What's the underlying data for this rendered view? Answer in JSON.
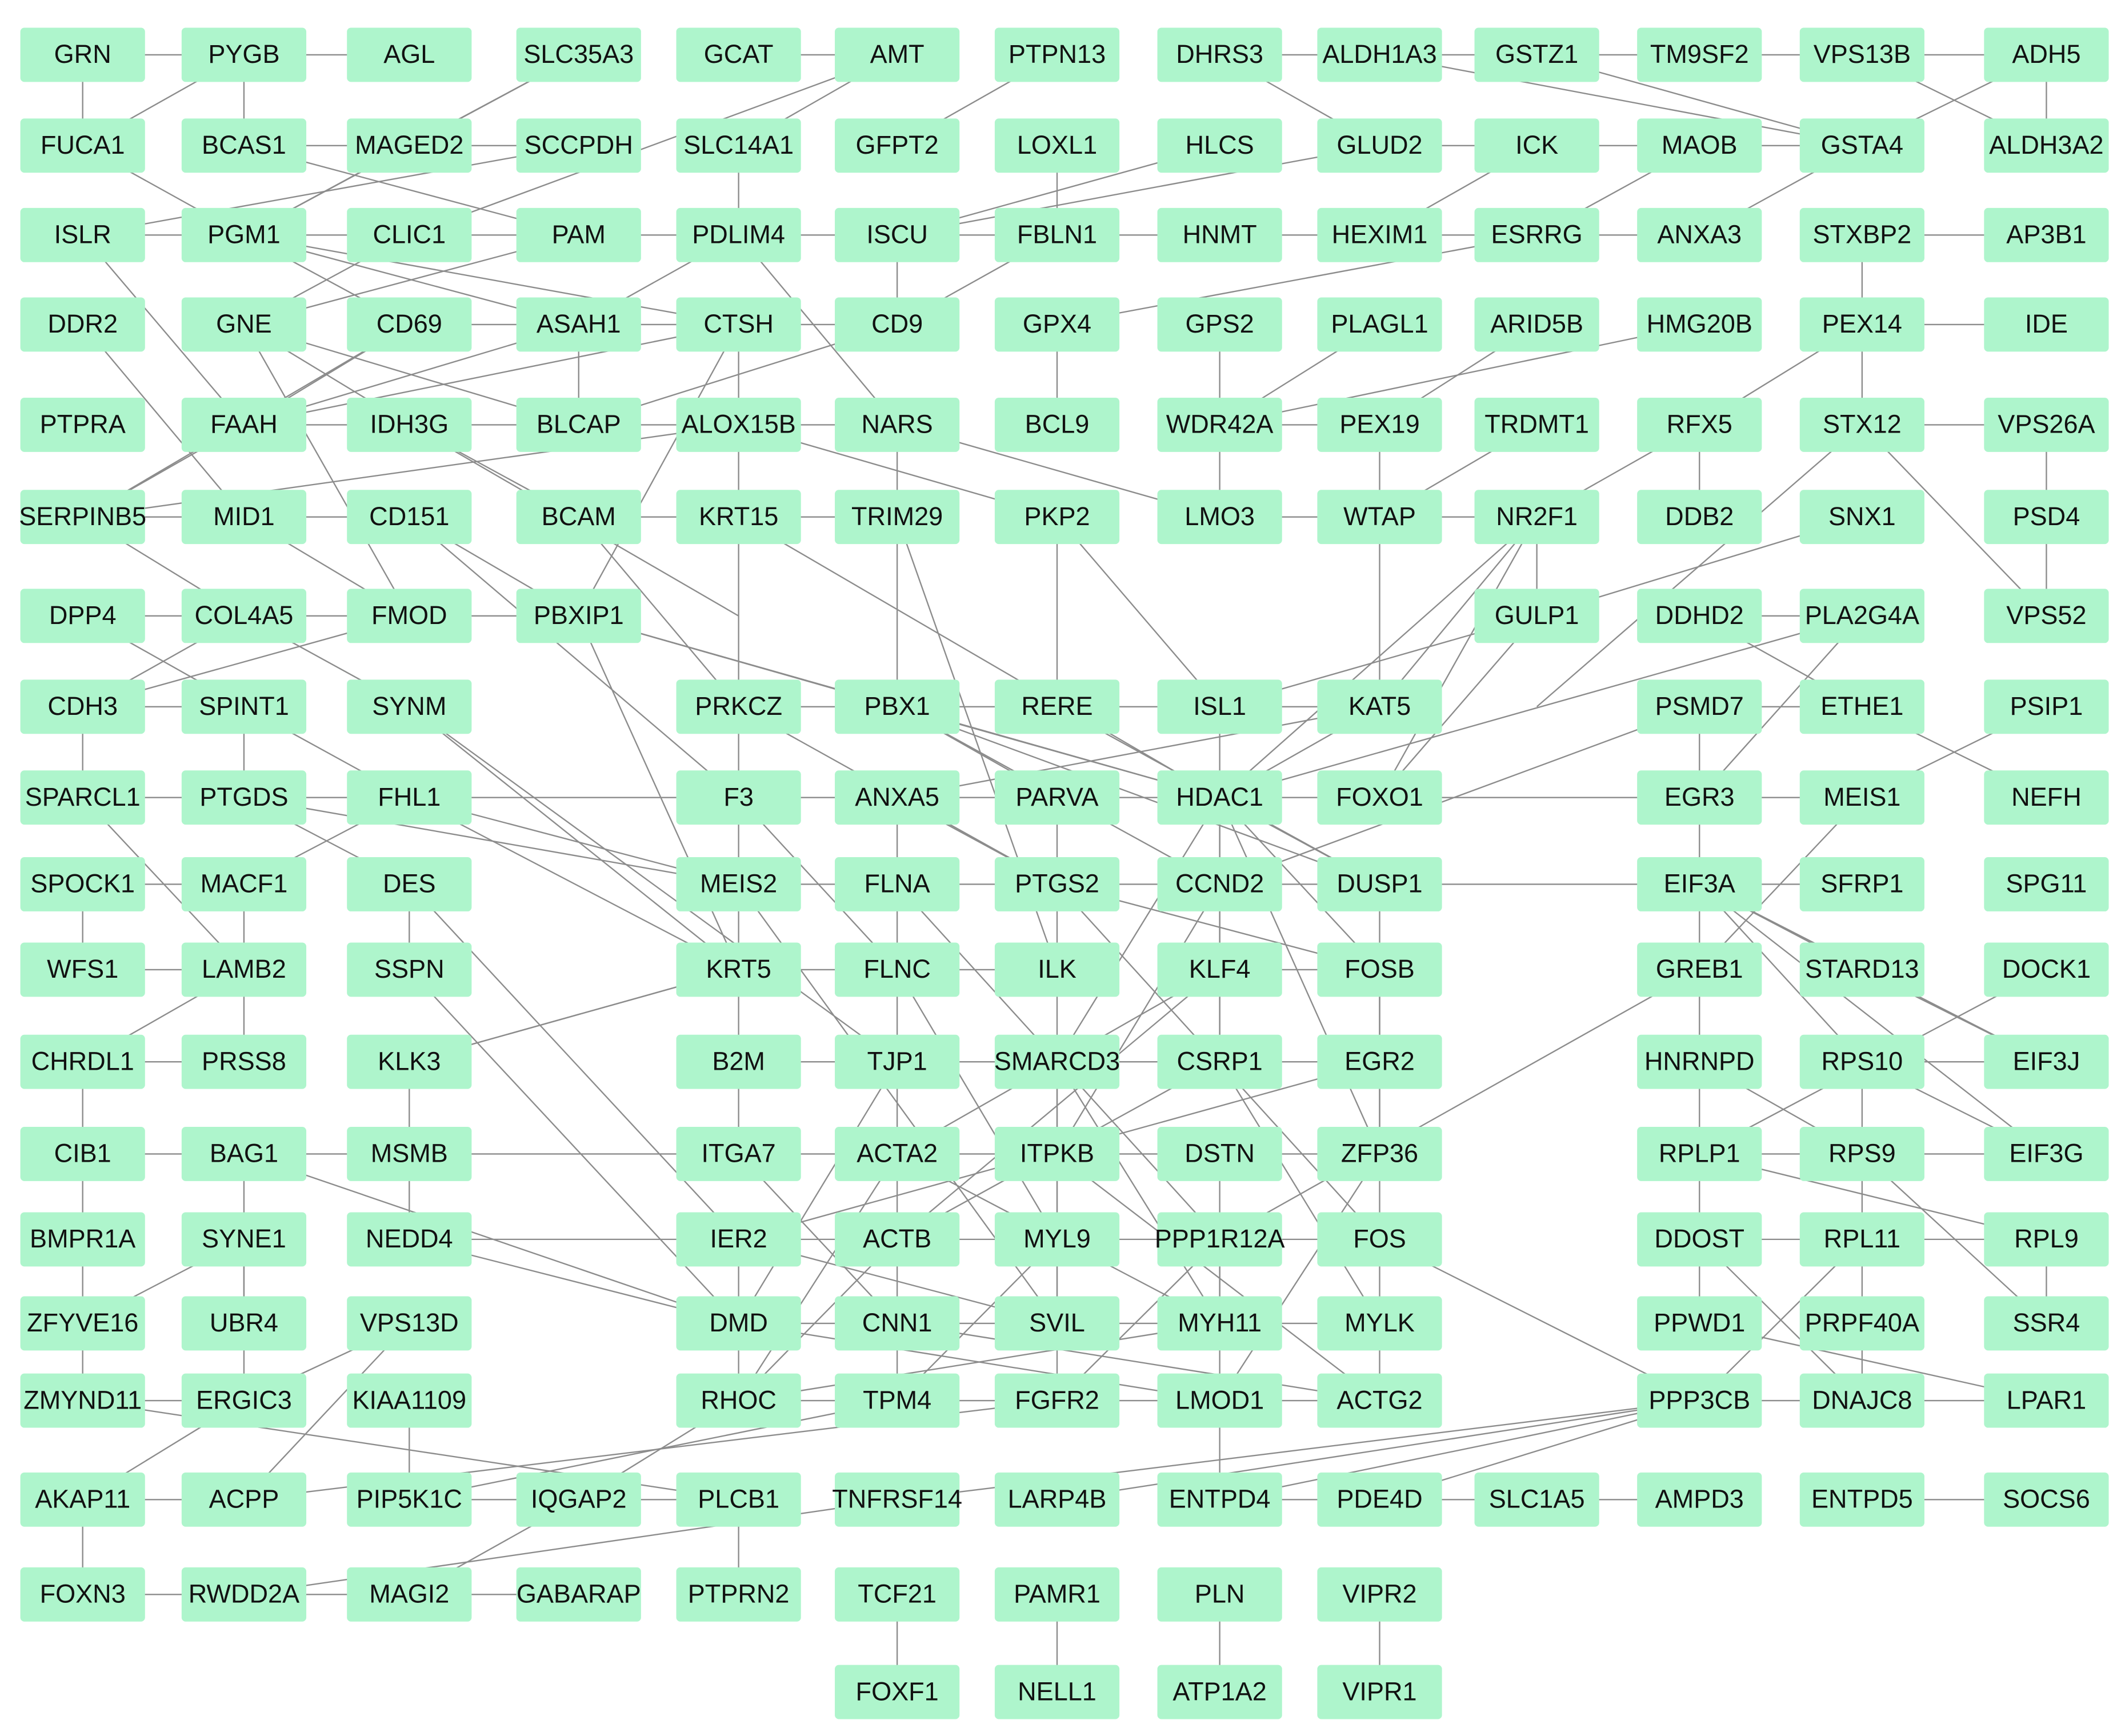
{
  "rows": [
    [
      "GRN",
      "PYGB",
      "AGL",
      "SLC35A3",
      "GCAT",
      "AMT",
      "PTPN13",
      "DHRS3",
      "ALDH1A3",
      "GSTZ1",
      "TM9SF2",
      "VPS13B",
      "ADH5"
    ],
    [
      "FUCA1",
      "BCAS1",
      "MAGED2",
      "SCCPDH",
      "SLC14A1",
      "GFPT2",
      "LOXL1",
      "HLCS",
      "GLUD2",
      "ICK",
      "MAOB",
      "GSTA4",
      "ALDH3A2"
    ],
    [
      "ISLR",
      "PGM1",
      "CLIC1",
      "PAM",
      "PDLIM4",
      "ISCU",
      "FBLN1",
      "HNMT",
      "HEXIM1",
      "ESRRG",
      "ANXA3",
      "STXBP2",
      "AP3B1"
    ],
    [
      "DDR2",
      "GNE",
      "CD69",
      "ASAH1",
      "CTSH",
      "CD9",
      "GPX4",
      "GPS2",
      "PLAGL1",
      "ARID5B",
      "HMG20B",
      "PEX14",
      "IDE"
    ],
    [
      "PTPRA",
      "FAAH",
      "IDH3G",
      "BLCAP",
      "ALOX15B",
      "NARS",
      "BCL9",
      "WDR42A",
      "PEX19",
      "TRDMT1",
      "RFX5",
      "STX12",
      "VPS26A"
    ],
    [
      "SERPINB5",
      "MID1",
      "CD151",
      "BCAM",
      "KRT15",
      "TRIM29",
      "PKP2",
      "LMO3",
      "WTAP",
      "NR2F1",
      "DDB2",
      "SNX1",
      "PSD4"
    ],
    [
      "DPP4",
      "COL4A5",
      "FMOD",
      "PBXIP1",
      "GULP1",
      "DDHD2",
      "PLA2G4A",
      "VPS52"
    ],
    [
      "CDH3",
      "SPINT1",
      "SYNM",
      "PRKCZ",
      "PBX1",
      "RERE",
      "ISL1",
      "KAT5",
      "PSMD7",
      "ETHE1",
      "PSIP1"
    ],
    [
      "SPARCL1",
      "PTGDS",
      "FHL1",
      "F3",
      "ANXA5",
      "PARVA",
      "HDAC1",
      "FOXO1",
      "EGR3",
      "MEIS1",
      "NEFH"
    ],
    [
      "SPOCK1",
      "MACF1",
      "DES",
      "MEIS2",
      "FLNA",
      "PTGS2",
      "CCND2",
      "DUSP1",
      "EIF3A",
      "SFRP1",
      "SPG11"
    ],
    [
      "WFS1",
      "LAMB2",
      "SSPN",
      "KRT5",
      "FLNC",
      "ILK",
      "KLF4",
      "FOSB",
      "GREB1",
      "STARD13",
      "DOCK1"
    ],
    [
      "CHRDL1",
      "PRSS8",
      "KLK3",
      "B2M",
      "TJP1",
      "SMARCD3",
      "CSRP1",
      "EGR2",
      "HNRNPD",
      "RPS10",
      "EIF3J"
    ],
    [
      "CIB1",
      "BAG1",
      "MSMB",
      "ITGA7",
      "ACTA2",
      "ITPKB",
      "DSTN",
      "ZFP36",
      "RPLP1",
      "RPS9",
      "EIF3G"
    ],
    [
      "BMPR1A",
      "SYNE1",
      "NEDD4",
      "IER2",
      "ACTB",
      "MYL9",
      "PPP1R12A",
      "FOS",
      "DDOST",
      "RPL11",
      "RPL9"
    ],
    [
      "ZFYVE16",
      "UBR4",
      "VPS13D",
      "DMD",
      "CNN1",
      "SVIL",
      "MYH11",
      "MYLK",
      "PPWD1",
      "PRPF40A",
      "SSR4"
    ],
    [
      "ZMYND11",
      "ERGIC3",
      "KIAA1109",
      "RHOC",
      "TPM4",
      "FGFR2",
      "LMOD1",
      "ACTG2",
      "PPP3CB",
      "DNAJC8",
      "LPAR1"
    ],
    [
      "AKAP11",
      "ACPP",
      "PIP5K1C",
      "IQGAP2",
      "PLCB1",
      "TNFRSF14",
      "LARP4B",
      "ENTPD4",
      "PDE4D",
      "SLC1A5",
      "AMPD3",
      "ENTPD5",
      "SOCS6"
    ],
    [
      "FOXN3",
      "RWDD2A",
      "MAGI2",
      "GABARAP",
      "PTPRN2",
      "TCF21",
      "PAMR1",
      "PLN",
      "VIPR2"
    ],
    [
      "FOXF1",
      "NELL1",
      "ATP1A2",
      "VIPR1"
    ]
  ]
}
